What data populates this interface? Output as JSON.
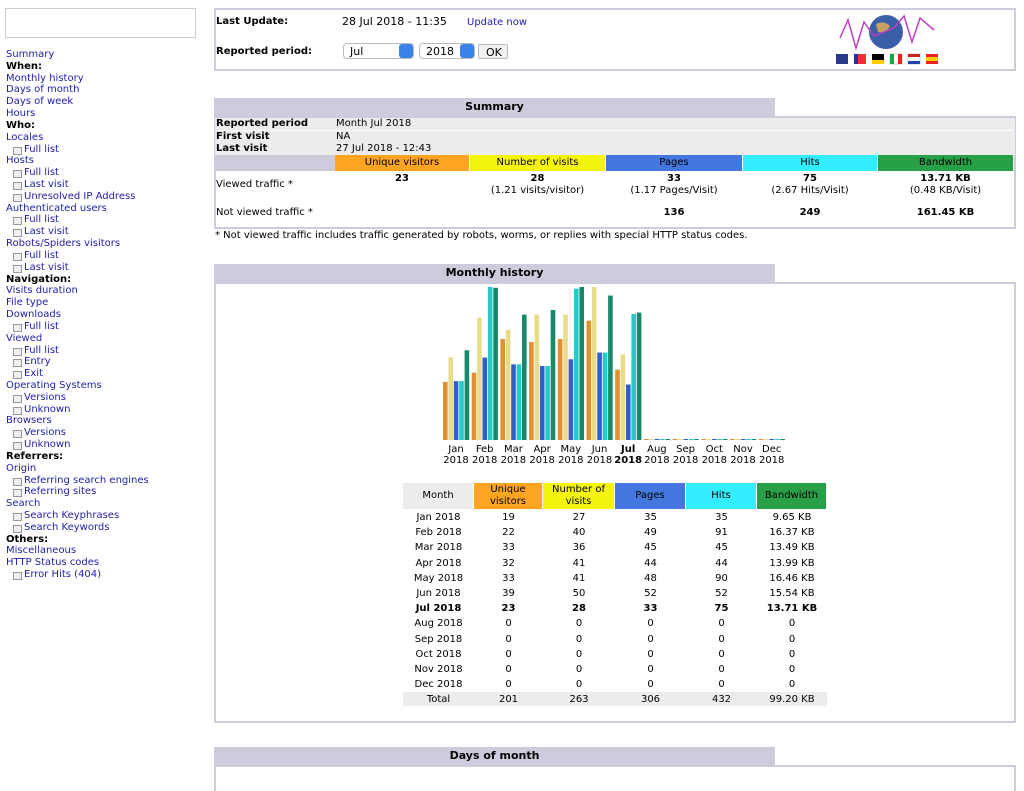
{
  "menu": {
    "top": "Summary",
    "sections": [
      {
        "heading": "When:",
        "items": [
          {
            "label": "Monthly history"
          },
          {
            "label": "Days of month"
          },
          {
            "label": "Days of week"
          },
          {
            "label": "Hours"
          }
        ]
      },
      {
        "heading": "Who:",
        "items": [
          {
            "label": "Locales",
            "sub": [
              "Full list"
            ]
          },
          {
            "label": "Hosts",
            "sub": [
              "Full list",
              "Last visit",
              "Unresolved IP Address"
            ]
          },
          {
            "label": "Authenticated users",
            "sub": [
              "Full list",
              "Last visit"
            ]
          },
          {
            "label": "Robots/Spiders visitors",
            "sub": [
              "Full list",
              "Last visit"
            ]
          }
        ]
      },
      {
        "heading": "Navigation:",
        "items": [
          {
            "label": "Visits duration"
          },
          {
            "label": "File type"
          },
          {
            "label": "Downloads",
            "sub": [
              "Full list"
            ]
          },
          {
            "label": "Viewed",
            "sub": [
              "Full list",
              "Entry",
              "Exit"
            ]
          },
          {
            "label": "Operating Systems",
            "sub": [
              "Versions",
              "Unknown"
            ]
          },
          {
            "label": "Browsers",
            "sub": [
              "Versions",
              "Unknown"
            ]
          }
        ]
      },
      {
        "heading": "Referrers:",
        "items": [
          {
            "label": "Origin",
            "sub": [
              "Referring search engines",
              "Referring sites"
            ]
          },
          {
            "label": "Search",
            "sub": [
              "Search Keyphrases",
              "Search Keywords"
            ]
          }
        ]
      },
      {
        "heading": "Others:",
        "items": [
          {
            "label": "Miscellaneous"
          },
          {
            "label": "HTTP Status codes",
            "sub": [
              "Error Hits (404)"
            ]
          }
        ]
      }
    ]
  },
  "header": {
    "last_update_label": "Last Update:",
    "last_update": "28 Jul 2018 - 11:35",
    "update_now": "Update now",
    "period_label": "Reported period:",
    "month": "Jul",
    "year": "2018",
    "ok": "OK"
  },
  "summary": {
    "title": "Summary",
    "info": [
      [
        "Reported period",
        "Month Jul 2018"
      ],
      [
        "First visit",
        "NA"
      ],
      [
        "Last visit",
        "27 Jul 2018 - 12:43"
      ]
    ],
    "columns": [
      "Unique visitors",
      "Number of visits",
      "Pages",
      "Hits",
      "Bandwidth"
    ],
    "viewed": {
      "label": "Viewed traffic *",
      "values": [
        "23",
        "28",
        "33",
        "75",
        "13.71 KB"
      ],
      "details": [
        null,
        "(1.21 visits/visitor)",
        "(1.17 Pages/Visit)",
        "(2.67 Hits/Visit)",
        "(0.48 KB/Visit)"
      ]
    },
    "not_viewed": {
      "label": "Not viewed traffic *",
      "values": [
        null,
        null,
        "136",
        "249",
        "161.45 KB"
      ]
    },
    "footnote": "* Not viewed traffic includes traffic generated by robots, worms, or replies with special HTTP status codes."
  },
  "monthly": {
    "title": "Monthly history",
    "chart": {
      "months": [
        "Jan",
        "Feb",
        "Mar",
        "Apr",
        "May",
        "Jun",
        "Jul",
        "Aug",
        "Sep",
        "Oct",
        "Nov",
        "Dec"
      ],
      "year": "2018",
      "current": "Jul"
    },
    "table": {
      "headers": [
        "Month",
        "Unique visitors",
        "Number of visits",
        "Pages",
        "Hits",
        "Bandwidth"
      ],
      "rows": [
        {
          "month": "Jan 2018",
          "values": [
            19,
            27,
            35,
            35
          ],
          "bandwidth": "9.65 KB"
        },
        {
          "month": "Feb 2018",
          "values": [
            22,
            40,
            49,
            91
          ],
          "bandwidth": "16.37 KB"
        },
        {
          "month": "Mar 2018",
          "values": [
            33,
            36,
            45,
            45
          ],
          "bandwidth": "13.49 KB"
        },
        {
          "month": "Apr 2018",
          "values": [
            32,
            41,
            44,
            44
          ],
          "bandwidth": "13.99 KB"
        },
        {
          "month": "May 2018",
          "values": [
            33,
            41,
            48,
            90
          ],
          "bandwidth": "16.46 KB"
        },
        {
          "month": "Jun 2018",
          "values": [
            39,
            50,
            52,
            52
          ],
          "bandwidth": "15.54 KB"
        },
        {
          "month": "Jul 2018",
          "values": [
            23,
            28,
            33,
            75
          ],
          "bandwidth": "13.71 KB"
        },
        {
          "month": "Aug 2018",
          "values": [
            0,
            0,
            0,
            0
          ],
          "bandwidth": "0"
        },
        {
          "month": "Sep 2018",
          "values": [
            0,
            0,
            0,
            0
          ],
          "bandwidth": "0"
        },
        {
          "month": "Oct 2018",
          "values": [
            0,
            0,
            0,
            0
          ],
          "bandwidth": "0"
        },
        {
          "month": "Nov 2018",
          "values": [
            0,
            0,
            0,
            0
          ],
          "bandwidth": "0"
        },
        {
          "month": "Dec 2018",
          "values": [
            0,
            0,
            0,
            0
          ],
          "bandwidth": "0"
        }
      ],
      "total": {
        "month": "Total",
        "values": [
          201,
          263,
          306,
          432
        ],
        "bandwidth": "99.20 KB"
      }
    }
  },
  "days_of_month": {
    "title": "Days of month"
  }
}
